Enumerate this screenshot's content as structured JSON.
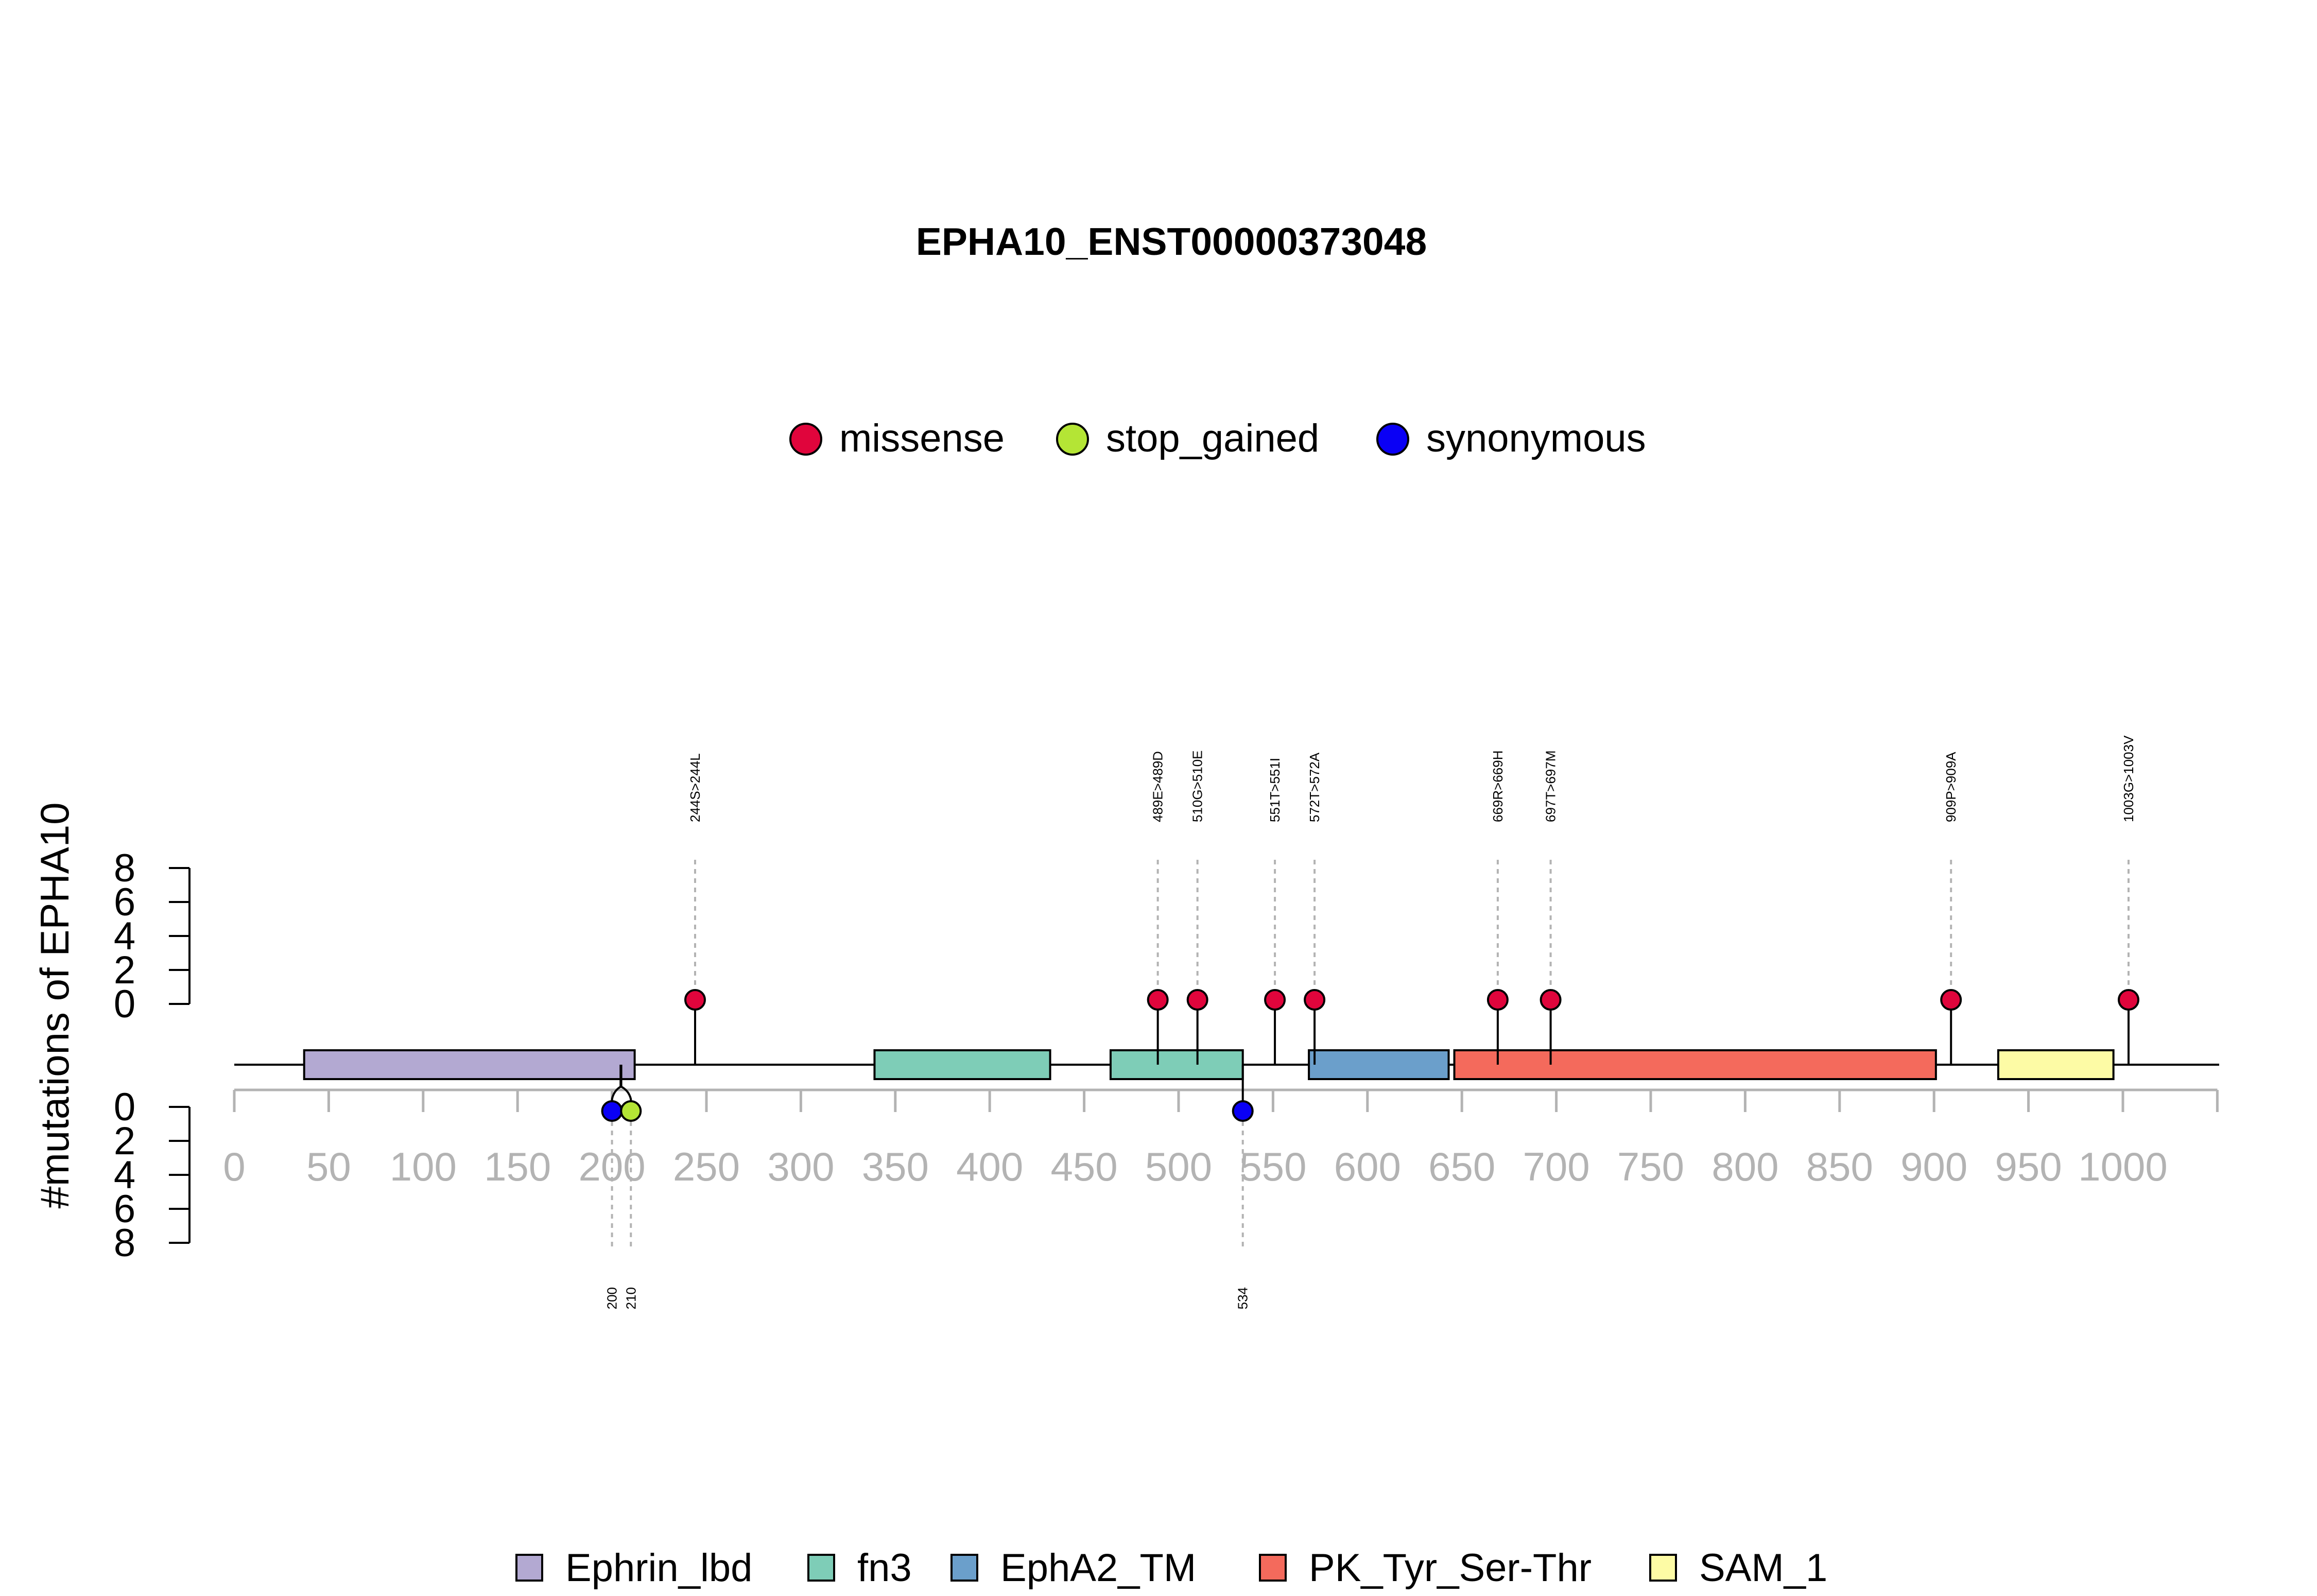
{
  "chart_data": {
    "type": "lollipop",
    "title": "EPHA10_ENST00000373048",
    "ylabel": "#mutations of EPHA10",
    "protein_range": [
      0,
      1050
    ],
    "x_ticks": [
      0,
      50,
      100,
      150,
      200,
      250,
      300,
      350,
      400,
      450,
      500,
      550,
      600,
      650,
      700,
      750,
      800,
      850,
      900,
      950,
      1000
    ],
    "y_ticks_top": [
      0,
      2,
      4,
      6,
      8
    ],
    "y_ticks_bottom": [
      0,
      2,
      4,
      6,
      8
    ],
    "y_range": [
      0,
      8
    ],
    "mutation_legend": [
      {
        "name": "missense",
        "color": "#E0053C"
      },
      {
        "name": "stop_gained",
        "color": "#B4E535"
      },
      {
        "name": "synonymous",
        "color": "#0A00F5"
      }
    ],
    "domains": [
      {
        "name": "Ephrin_lbd",
        "start": 37,
        "end": 212,
        "color": "#B3A9D2"
      },
      {
        "name": "fn3",
        "start": 339,
        "end": 432,
        "color": "#7ECDB7"
      },
      {
        "name": "fn3",
        "start": 464,
        "end": 534,
        "color": "#7ECDB7"
      },
      {
        "name": "EphA2_TM",
        "start": 569,
        "end": 643,
        "color": "#6B9FCB"
      },
      {
        "name": "PK_Tyr_Ser-Thr",
        "start": 646,
        "end": 901,
        "color": "#F46A5C"
      },
      {
        "name": "SAM_1",
        "start": 934,
        "end": 995,
        "color": "#FDFBA5"
      }
    ],
    "domain_legend": [
      {
        "name": "Ephrin_lbd",
        "color": "#B3A9D2"
      },
      {
        "name": "fn3",
        "color": "#7ECDB7"
      },
      {
        "name": "EphA2_TM",
        "color": "#6B9FCB"
      },
      {
        "name": "PK_Tyr_Ser-Thr",
        "color": "#F46A5C"
      },
      {
        "name": "SAM_1",
        "color": "#FDFBA5"
      }
    ],
    "mutations_top": [
      {
        "label": "244S>244L",
        "position": 244,
        "count": 1,
        "type": "missense"
      },
      {
        "label": "489E>489D",
        "position": 489,
        "count": 1,
        "type": "missense"
      },
      {
        "label": "510G>510E",
        "position": 510,
        "count": 1,
        "type": "missense"
      },
      {
        "label": "551T>551I",
        "position": 551,
        "count": 1,
        "type": "missense"
      },
      {
        "label": "572T>572A",
        "position": 572,
        "count": 1,
        "type": "missense"
      },
      {
        "label": "669R>669H",
        "position": 669,
        "count": 1,
        "type": "missense"
      },
      {
        "label": "697T>697M",
        "position": 697,
        "count": 1,
        "type": "missense"
      },
      {
        "label": "909P>909A",
        "position": 909,
        "count": 1,
        "type": "missense"
      },
      {
        "label": "1003G>1003V",
        "position": 1003,
        "count": 1,
        "type": "missense"
      }
    ],
    "mutations_bottom": [
      {
        "label": "200",
        "position": 200,
        "count": 1,
        "type": "synonymous"
      },
      {
        "label": "210",
        "position": 210,
        "count": 1,
        "type": "stop_gained"
      },
      {
        "label": "534",
        "position": 534,
        "count": 1,
        "type": "synonymous"
      }
    ]
  }
}
